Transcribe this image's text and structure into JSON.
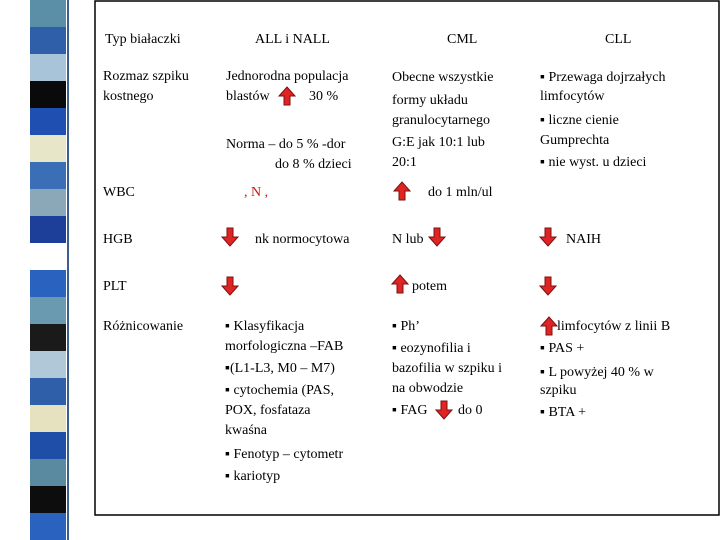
{
  "table": {
    "header": [
      "Typ białaczki",
      "ALL i NALL",
      "CML",
      "CLL"
    ],
    "rows": [
      {
        "label": [
          "Rozmaz szpiku",
          "kostnego"
        ],
        "cells": [
          [
            "Jednorodna populacja",
            "blastów",
            "30 %",
            "Norma – do 5 % -dor",
            "do 8 % dzieci"
          ],
          [
            "Obecne wszystkie",
            "formy układu",
            "granulocytarnego",
            "G:E jak 10:1 lub",
            "20:1"
          ],
          [
            "▪ Przewaga  dojrzałych",
            "limfocytów",
            "▪ liczne cienie",
            "Gumprechta",
            "▪ nie wyst. u dzieci"
          ]
        ]
      },
      {
        "label": [
          "WBC"
        ],
        "cells": [
          [
            ", N ,"
          ],
          [
            "do 1 mln/ul"
          ],
          []
        ]
      },
      {
        "label": [
          "HGB"
        ],
        "cells": [
          [
            "nk  normocytowa"
          ],
          [
            "N lub"
          ],
          [
            "NAIH"
          ]
        ]
      },
      {
        "label": [
          "PLT"
        ],
        "cells": [
          [],
          [
            "potem"
          ],
          []
        ]
      },
      {
        "label": [
          "Różnicowanie"
        ],
        "cells": [
          [
            "▪ Klasyfikacja",
            "morfologiczna –FAB",
            "▪(L1-L3, M0 – M7)",
            "▪ cytochemia (PAS,",
            "POX, fosfataza",
            "kwaśna",
            "▪ Fenotyp – cytometr",
            "▪ kariotyp"
          ],
          [
            "▪ Ph’",
            "▪ eozynofilia i",
            "bazofilia w szpiku i",
            "na obwodzie",
            "▪ FAG",
            "do 0"
          ],
          [
            "limfocytów z linii B",
            "▪ PAS +",
            "▪ L powyżej 40 % w",
            "szpiku",
            "▪ BTA +"
          ]
        ]
      }
    ]
  }
}
